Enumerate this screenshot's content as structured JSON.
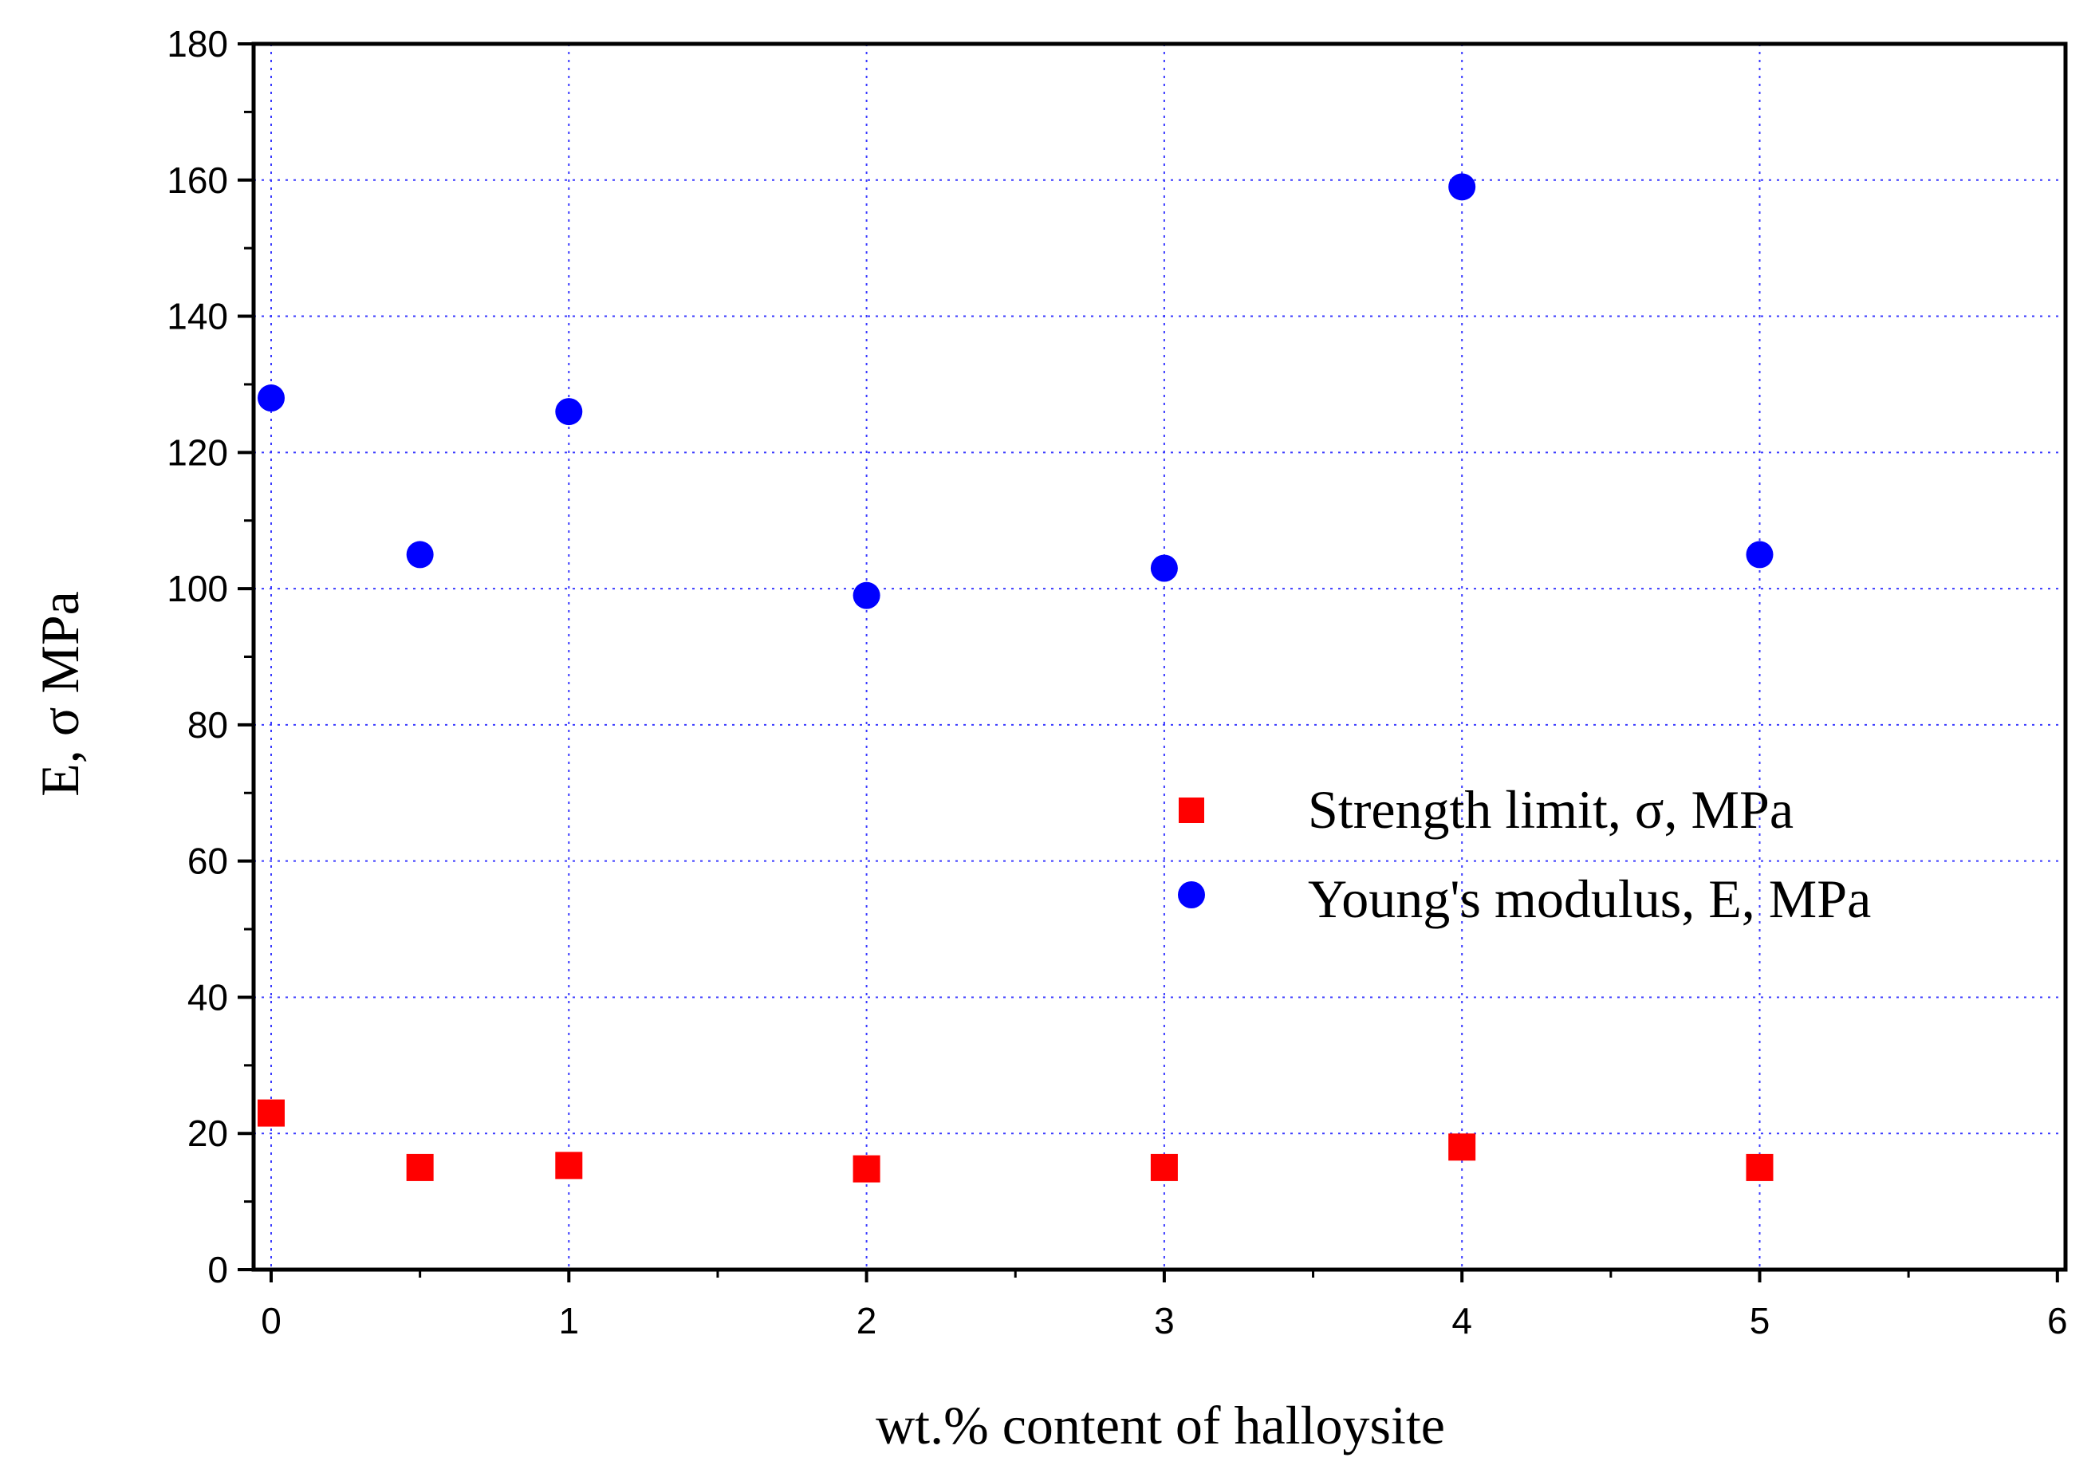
{
  "chart_data": {
    "type": "scatter",
    "xlabel": "wt.% content of halloysite",
    "ylabel": "E, σ  MPa",
    "xlim": [
      0,
      6
    ],
    "ylim": [
      0,
      180
    ],
    "x_ticks": [
      "0",
      "1",
      "2",
      "3",
      "4",
      "5",
      "6"
    ],
    "y_ticks": [
      "0",
      "20",
      "40",
      "60",
      "80",
      "100",
      "120",
      "140",
      "160",
      "180"
    ],
    "grid": true,
    "legend_position": "center-right",
    "series": [
      {
        "name": "Strength limit, σ, MPa",
        "marker": "square",
        "color": "#ff0000",
        "x": [
          0,
          0.5,
          1,
          2,
          3,
          4,
          5
        ],
        "y": [
          23,
          15,
          15.3,
          14.8,
          15,
          18,
          15
        ]
      },
      {
        "name": "Young's modulus, E, MPa",
        "marker": "circle",
        "color": "#0000ff",
        "x": [
          0,
          0.5,
          1,
          2,
          3,
          4,
          5
        ],
        "y": [
          128,
          105,
          126,
          99,
          103,
          159,
          105
        ]
      }
    ]
  }
}
